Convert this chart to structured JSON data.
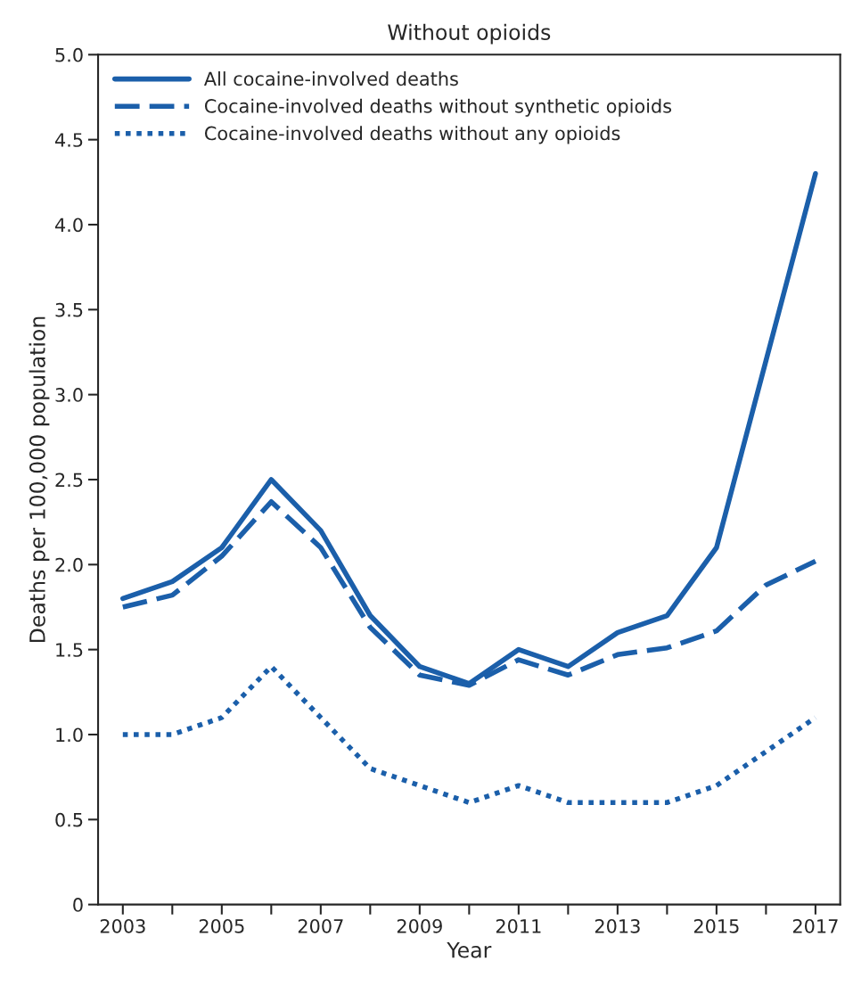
{
  "chart_data": {
    "type": "line",
    "title": "Without opioids",
    "xlabel": "Year",
    "ylabel": "Deaths per 100,000 population",
    "x": [
      2003,
      2004,
      2005,
      2006,
      2007,
      2008,
      2009,
      2010,
      2011,
      2012,
      2013,
      2014,
      2015,
      2016,
      2017
    ],
    "series": [
      {
        "name": "All cocaine-involved deaths",
        "color": "#1b5faa",
        "line_style": "solid",
        "values": [
          1.8,
          1.9,
          2.1,
          2.5,
          2.2,
          1.7,
          1.4,
          1.3,
          1.5,
          1.4,
          1.6,
          1.7,
          2.1,
          3.2,
          4.3
        ]
      },
      {
        "name": "Cocaine-involved deaths without synthetic opioids",
        "color": "#1b5faa",
        "line_style": "dashed",
        "values": [
          1.75,
          1.82,
          2.05,
          2.37,
          2.1,
          1.63,
          1.35,
          1.29,
          1.44,
          1.35,
          1.47,
          1.51,
          1.61,
          1.88,
          2.02
        ]
      },
      {
        "name": "Cocaine-involved deaths without any opioids",
        "color": "#1b5faa",
        "line_style": "dotted",
        "values": [
          1.0,
          1.0,
          1.1,
          1.4,
          1.1,
          0.8,
          0.7,
          0.6,
          0.7,
          0.6,
          0.6,
          0.6,
          0.7,
          0.9,
          1.1
        ]
      }
    ],
    "xlim": [
      2002.5,
      2017.5
    ],
    "xticks": [
      2003,
      {
        "value": 2004,
        "label": null
      },
      2005,
      {
        "value": 2006,
        "label": null
      },
      2007,
      {
        "value": 2008,
        "label": null
      },
      2009,
      {
        "value": 2010,
        "label": null
      },
      2011,
      {
        "value": 2012,
        "label": null
      },
      2013,
      {
        "value": 2014,
        "label": null
      },
      2015,
      {
        "value": 2016,
        "label": null
      },
      2017
    ],
    "ylim": [
      0,
      5
    ],
    "yticks": [
      0,
      0.5,
      {
        "value": 1,
        "label": "1.0"
      },
      1.5,
      {
        "value": 2,
        "label": "2.0"
      },
      2.5,
      {
        "value": 3,
        "label": "3.0"
      },
      3.5,
      {
        "value": 4,
        "label": "4.0"
      },
      4.5,
      {
        "value": 5,
        "label": "5.0"
      }
    ],
    "grid": false,
    "legend": "top left",
    "marker": "none"
  }
}
